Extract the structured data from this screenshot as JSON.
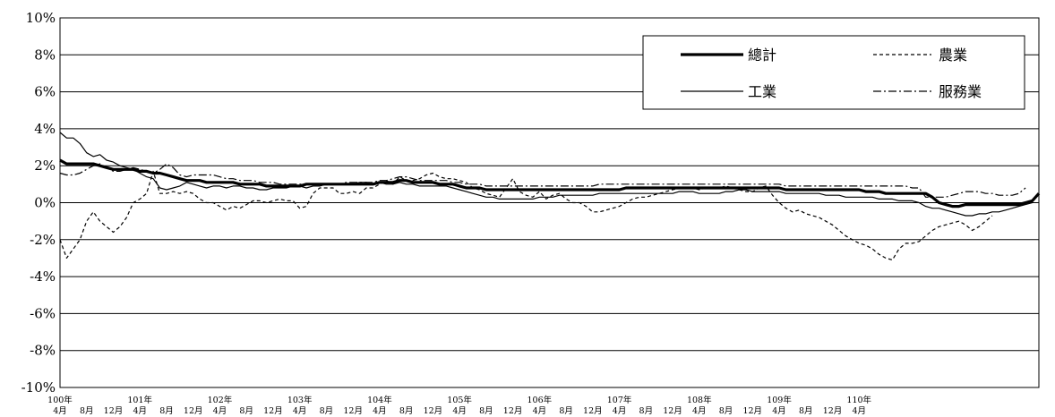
{
  "chart_data": {
    "type": "line",
    "ylim": [
      -10,
      10
    ],
    "ytick_labels": [
      "10%",
      "8%",
      "6%",
      "4%",
      "2%",
      "0%",
      "-2%",
      "-4%",
      "-6%",
      "-8%",
      "-10%"
    ],
    "ytick_values": [
      10,
      8,
      6,
      4,
      2,
      0,
      -2,
      -4,
      -6,
      -8,
      -10
    ],
    "x_start": "100年4月",
    "x_end": "110年4月",
    "x_ticks": [
      {
        "year_label": "100年",
        "labels": [
          "4月",
          "8月",
          "12月"
        ]
      },
      {
        "year_label": "101年",
        "labels": [
          "4月",
          "8月",
          "12月"
        ]
      },
      {
        "year_label": "102年",
        "labels": [
          "4月",
          "8月",
          "12月"
        ]
      },
      {
        "year_label": "103年",
        "labels": [
          "4月",
          "8月",
          "12月"
        ]
      },
      {
        "year_label": "104年",
        "labels": [
          "4月",
          "8月",
          "12月"
        ]
      },
      {
        "year_label": "105年",
        "labels": [
          "4月",
          "8月",
          "12月"
        ]
      },
      {
        "year_label": "106年",
        "labels": [
          "4月",
          "8月",
          "12月"
        ]
      },
      {
        "year_label": "107年",
        "labels": [
          "4月",
          "8月",
          "12月"
        ]
      },
      {
        "year_label": "108年",
        "labels": [
          "4月",
          "8月",
          "12月"
        ]
      },
      {
        "year_label": "109年",
        "labels": [
          "4月",
          "8月",
          "12月"
        ]
      },
      {
        "year_label": "110年",
        "labels": [
          "4月"
        ]
      }
    ],
    "legend_position": "top-right",
    "grid": "horizontal",
    "series": [
      {
        "name": "總計",
        "style": "solid-thick",
        "values": [
          2.3,
          2.1,
          2.1,
          2.1,
          2.1,
          2.1,
          2.0,
          1.9,
          1.8,
          1.8,
          1.8,
          1.8,
          1.7,
          1.7,
          1.6,
          1.6,
          1.5,
          1.4,
          1.3,
          1.2,
          1.2,
          1.2,
          1.1,
          1.1,
          1.1,
          1.1,
          1.1,
          1.0,
          1.0,
          1.0,
          1.0,
          0.9,
          0.9,
          0.9,
          0.9,
          0.9,
          0.9,
          1.0,
          1.0,
          1.0,
          1.0,
          1.0,
          1.0,
          1.0,
          1.0,
          1.0,
          1.0,
          1.0,
          1.1,
          1.1,
          1.1,
          1.2,
          1.2,
          1.1,
          1.1,
          1.1,
          1.1,
          1.0,
          1.0,
          1.0,
          0.9,
          0.8,
          0.8,
          0.8,
          0.7,
          0.7,
          0.7,
          0.7,
          0.7,
          0.7,
          0.7,
          0.7,
          0.7,
          0.7,
          0.7,
          0.7,
          0.7,
          0.7,
          0.7,
          0.7,
          0.7,
          0.7,
          0.7,
          0.7,
          0.7,
          0.8,
          0.8,
          0.8,
          0.8,
          0.8,
          0.8,
          0.8,
          0.8,
          0.8,
          0.8,
          0.8,
          0.8,
          0.8,
          0.8,
          0.8,
          0.8,
          0.8,
          0.8,
          0.8,
          0.8,
          0.8,
          0.8,
          0.8,
          0.8,
          0.7,
          0.7,
          0.7,
          0.7,
          0.7,
          0.7,
          0.7,
          0.7,
          0.7,
          0.7,
          0.7,
          0.7,
          0.6,
          0.6,
          0.6,
          0.5,
          0.5,
          0.5,
          0.5,
          0.5,
          0.5,
          0.5,
          0.3,
          0.0,
          -0.1,
          -0.2,
          -0.2,
          -0.1,
          -0.1,
          -0.1,
          -0.1,
          -0.1,
          -0.1,
          -0.1,
          -0.1,
          -0.1,
          0.0,
          0.1,
          0.5
        ]
      },
      {
        "name": "工業",
        "style": "solid-thin",
        "values": [
          3.8,
          3.5,
          3.5,
          3.2,
          2.7,
          2.5,
          2.6,
          2.3,
          2.2,
          2.0,
          1.9,
          1.8,
          1.6,
          1.4,
          1.3,
          0.8,
          0.7,
          0.8,
          0.9,
          1.1,
          1.0,
          0.9,
          0.8,
          0.9,
          0.9,
          0.8,
          0.9,
          0.9,
          0.8,
          0.8,
          0.7,
          0.7,
          0.8,
          0.8,
          0.8,
          0.9,
          0.9,
          0.8,
          0.9,
          0.9,
          1.0,
          1.0,
          1.0,
          1.0,
          1.0,
          1.1,
          1.1,
          1.0,
          1.1,
          1.0,
          1.0,
          1.1,
          1.0,
          1.0,
          0.9,
          0.9,
          0.9,
          0.9,
          0.9,
          0.8,
          0.7,
          0.6,
          0.5,
          0.4,
          0.3,
          0.3,
          0.2,
          0.2,
          0.2,
          0.2,
          0.2,
          0.2,
          0.3,
          0.3,
          0.3,
          0.4,
          0.4,
          0.4,
          0.4,
          0.4,
          0.4,
          0.5,
          0.5,
          0.5,
          0.5,
          0.5,
          0.5,
          0.5,
          0.5,
          0.5,
          0.5,
          0.5,
          0.5,
          0.6,
          0.6,
          0.6,
          0.5,
          0.5,
          0.5,
          0.5,
          0.6,
          0.6,
          0.7,
          0.7,
          0.6,
          0.6,
          0.6,
          0.6,
          0.6,
          0.5,
          0.5,
          0.5,
          0.5,
          0.5,
          0.5,
          0.4,
          0.4,
          0.4,
          0.3,
          0.3,
          0.3,
          0.3,
          0.3,
          0.2,
          0.2,
          0.2,
          0.1,
          0.1,
          0.1,
          0.0,
          -0.2,
          -0.3,
          -0.3,
          -0.4,
          -0.5,
          -0.6,
          -0.7,
          -0.7,
          -0.6,
          -0.6,
          -0.5,
          -0.5,
          -0.4,
          -0.3,
          -0.2,
          -0.1,
          0.0
        ]
      },
      {
        "name": "農業",
        "style": "dashed",
        "values": [
          -2.0,
          -3.0,
          -2.5,
          -2.0,
          -1.0,
          -0.5,
          -1.0,
          -1.3,
          -1.6,
          -1.3,
          -0.8,
          0.0,
          0.2,
          0.5,
          1.7,
          0.5,
          0.5,
          0.6,
          0.5,
          0.6,
          0.5,
          0.2,
          0.0,
          0.0,
          -0.2,
          -0.4,
          -0.2,
          -0.3,
          -0.1,
          0.1,
          0.1,
          0.0,
          0.1,
          0.2,
          0.1,
          0.1,
          -0.3,
          -0.2,
          0.5,
          0.8,
          0.8,
          0.8,
          0.5,
          0.5,
          0.6,
          0.5,
          0.8,
          0.8,
          1.0,
          1.2,
          1.0,
          1.4,
          1.2,
          1.2,
          1.3,
          1.5,
          1.6,
          1.4,
          1.3,
          1.3,
          1.2,
          1.1,
          0.8,
          0.7,
          0.5,
          0.4,
          0.3,
          0.8,
          1.3,
          0.6,
          0.4,
          0.3,
          0.6,
          0.2,
          0.4,
          0.5,
          0.2,
          0.0,
          0.0,
          -0.2,
          -0.5,
          -0.5,
          -0.4,
          -0.3,
          -0.2,
          0.0,
          0.2,
          0.3,
          0.3,
          0.4,
          0.5,
          0.6,
          0.7,
          0.8,
          0.8,
          0.8,
          0.7,
          0.8,
          0.8,
          0.8,
          0.9,
          0.8,
          0.7,
          0.6,
          0.6,
          0.8,
          0.9,
          0.4,
          0.0,
          -0.3,
          -0.5,
          -0.4,
          -0.6,
          -0.7,
          -0.8,
          -1.0,
          -1.2,
          -1.5,
          -1.8,
          -2.0,
          -2.2,
          -2.3,
          -2.5,
          -2.8,
          -3.0,
          -3.1,
          -2.5,
          -2.2,
          -2.2,
          -2.1,
          -1.8,
          -1.5,
          -1.3,
          -1.2,
          -1.1,
          -1.0,
          -1.2,
          -1.5,
          -1.3,
          -1.0,
          -0.7
        ]
      },
      {
        "name": "服務業",
        "style": "dash-dot",
        "values": [
          1.6,
          1.5,
          1.5,
          1.6,
          1.8,
          2.0,
          2.1,
          1.9,
          1.7,
          1.7,
          1.8,
          1.9,
          1.8,
          1.7,
          1.6,
          1.8,
          2.1,
          1.9,
          1.5,
          1.4,
          1.5,
          1.5,
          1.5,
          1.5,
          1.4,
          1.3,
          1.3,
          1.2,
          1.2,
          1.2,
          1.1,
          1.1,
          1.1,
          1.0,
          1.0,
          1.0,
          1.0,
          1.0,
          1.0,
          1.0,
          1.0,
          1.0,
          1.0,
          1.1,
          1.1,
          1.1,
          1.1,
          1.1,
          1.2,
          1.2,
          1.3,
          1.4,
          1.4,
          1.3,
          1.2,
          1.2,
          1.2,
          1.2,
          1.2,
          1.1,
          1.1,
          1.0,
          1.0,
          1.0,
          0.9,
          0.9,
          0.9,
          0.9,
          0.9,
          0.9,
          0.9,
          0.9,
          0.9,
          0.9,
          0.9,
          0.9,
          0.9,
          0.9,
          0.9,
          0.9,
          0.9,
          1.0,
          1.0,
          1.0,
          1.0,
          1.0,
          1.0,
          1.0,
          1.0,
          1.0,
          1.0,
          1.0,
          1.0,
          1.0,
          1.0,
          1.0,
          1.0,
          1.0,
          1.0,
          1.0,
          1.0,
          1.0,
          1.0,
          1.0,
          1.0,
          1.0,
          1.0,
          1.0,
          1.0,
          0.9,
          0.9,
          0.9,
          0.9,
          0.9,
          0.9,
          0.9,
          0.9,
          0.9,
          0.9,
          0.9,
          0.9,
          0.9,
          0.9,
          0.9,
          0.9,
          0.9,
          0.9,
          0.9,
          0.8,
          0.8,
          0.3,
          0.3,
          0.3,
          0.3,
          0.4,
          0.5,
          0.6,
          0.6,
          0.6,
          0.5,
          0.5,
          0.4,
          0.4,
          0.4,
          0.5,
          0.8
        ]
      }
    ]
  }
}
